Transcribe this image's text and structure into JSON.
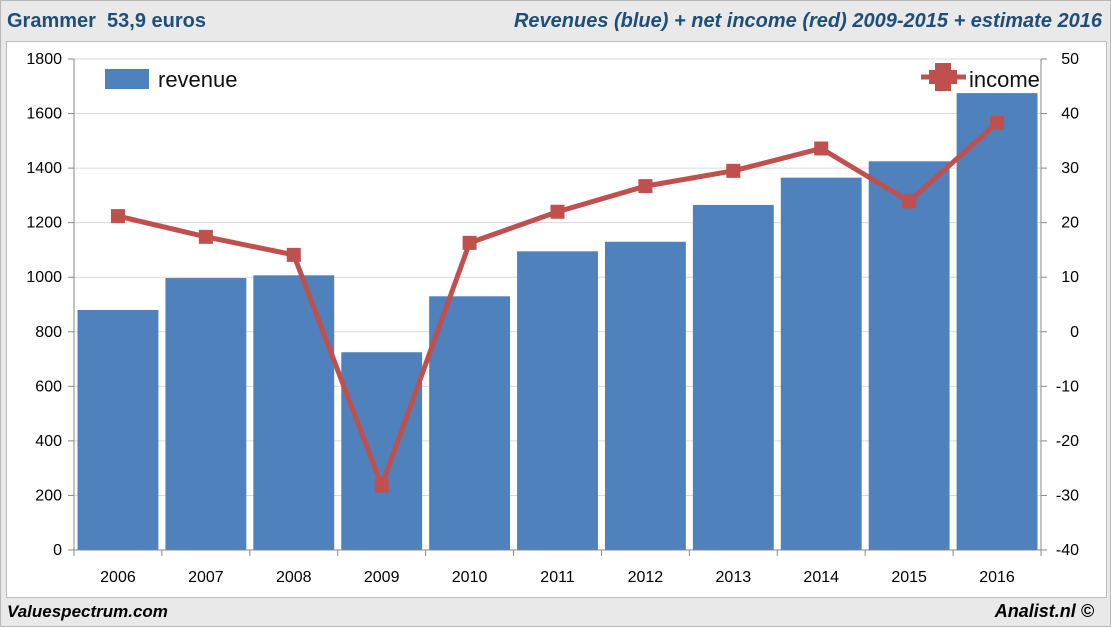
{
  "header": {
    "left": "Grammer  53,9 euros",
    "right": "Revenues (blue) + net income (red) 2009-2015 + estimate 2016"
  },
  "footer": {
    "left": "Valuespectrum.com",
    "right": "Analist.nl ©"
  },
  "chart_data": {
    "type": "bar",
    "categories": [
      "2006",
      "2007",
      "2008",
      "2009",
      "2010",
      "2011",
      "2012",
      "2013",
      "2014",
      "2015",
      "2016"
    ],
    "series": [
      {
        "name": "revenue",
        "type": "bar",
        "axis": "left",
        "color": "#4f81bd",
        "values": [
          880,
          997,
          1007,
          725,
          930,
          1095,
          1130,
          1265,
          1365,
          1425,
          1675
        ]
      },
      {
        "name": "income",
        "type": "line",
        "axis": "right",
        "color": "#c0504d",
        "values": [
          21.2,
          17.4,
          14.1,
          -28.2,
          16.3,
          22.0,
          26.7,
          29.5,
          33.6,
          23.9,
          38.3
        ]
      }
    ],
    "ylim_left": [
      0,
      1800
    ],
    "yticks_left": [
      "0",
      "200",
      "400",
      "600",
      "800",
      "1000",
      "1200",
      "1400",
      "1600",
      "1800"
    ],
    "ylim_right": [
      -40,
      50
    ],
    "yticks_right": [
      "-40",
      "-30",
      "-20",
      "-10",
      "0",
      "10",
      "20",
      "30",
      "40",
      "50"
    ],
    "grid": true,
    "legend": [
      "top-left",
      "top-right"
    ]
  }
}
